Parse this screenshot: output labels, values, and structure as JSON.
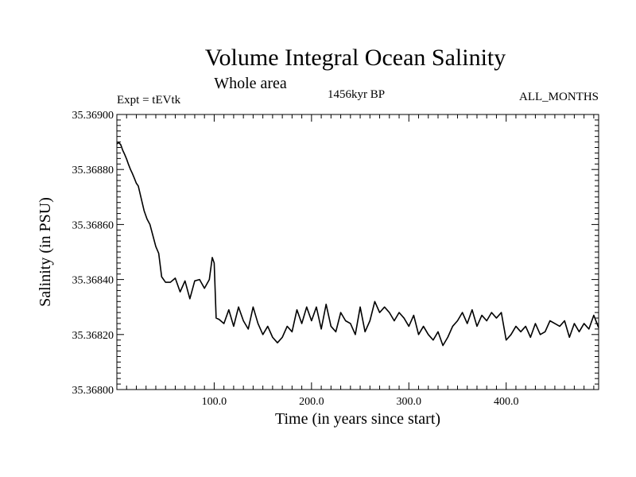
{
  "chart_data": {
    "type": "line",
    "title": "Volume Integral Ocean Salinity",
    "subtitle": "Whole area",
    "experiment_label": "Expt = tEVtk",
    "period_label": "1456kyr BP",
    "months_label": "ALL_MONTHS",
    "xlabel": "Time (in years since start)",
    "ylabel": "Salinity (in PSU)",
    "xlim": [
      0,
      495
    ],
    "ylim": [
      35.368,
      35.369
    ],
    "x_ticks": [
      100,
      200,
      300,
      400
    ],
    "x_tick_labels": [
      "100.0",
      "200.0",
      "300.0",
      "400.0"
    ],
    "y_ticks": [
      35.368,
      35.3682,
      35.3684,
      35.3686,
      35.3688,
      35.369
    ],
    "y_tick_labels": [
      "35.36800",
      "35.36820",
      "35.36840",
      "35.36860",
      "35.36880",
      "35.36900"
    ],
    "grid": false,
    "series": [
      {
        "name": "Salinity",
        "color": "#000000",
        "x": [
          0,
          2,
          4,
          6,
          8,
          10,
          12,
          14,
          16,
          18,
          20,
          22,
          25,
          28,
          31,
          34,
          37,
          40,
          43,
          46,
          50,
          55,
          60,
          65,
          70,
          75,
          80,
          85,
          90,
          95,
          98,
          100,
          102,
          105,
          110,
          115,
          120,
          125,
          130,
          135,
          140,
          145,
          150,
          155,
          160,
          165,
          170,
          175,
          180,
          185,
          190,
          195,
          200,
          205,
          210,
          215,
          220,
          225,
          230,
          235,
          240,
          245,
          250,
          255,
          260,
          265,
          270,
          275,
          280,
          285,
          290,
          295,
          300,
          305,
          310,
          315,
          320,
          325,
          330,
          335,
          340,
          345,
          350,
          355,
          360,
          365,
          370,
          375,
          380,
          385,
          390,
          395,
          400,
          405,
          410,
          415,
          420,
          425,
          430,
          435,
          440,
          445,
          450,
          455,
          460,
          465,
          470,
          475,
          480,
          485,
          490,
          495
        ],
        "y": [
          35.368893,
          35.368898,
          35.36889,
          35.36887,
          35.368855,
          35.368838,
          35.368818,
          35.3688,
          35.368785,
          35.368768,
          35.36875,
          35.36874,
          35.368695,
          35.36865,
          35.36862,
          35.3686,
          35.36856,
          35.36852,
          35.368495,
          35.36841,
          35.36839,
          35.36839,
          35.368405,
          35.368355,
          35.368395,
          35.36833,
          35.368395,
          35.3684,
          35.368368,
          35.3684,
          35.36848,
          35.36846,
          35.36826,
          35.368255,
          35.36824,
          35.36829,
          35.36823,
          35.3683,
          35.36825,
          35.36822,
          35.3683,
          35.36824,
          35.3682,
          35.36823,
          35.36819,
          35.36817,
          35.36819,
          35.36823,
          35.36821,
          35.36829,
          35.36824,
          35.3683,
          35.36825,
          35.3683,
          35.36822,
          35.36831,
          35.36823,
          35.36821,
          35.36828,
          35.36825,
          35.36824,
          35.3682,
          35.3683,
          35.36821,
          35.36825,
          35.36832,
          35.36828,
          35.3683,
          35.36828,
          35.36825,
          35.36828,
          35.36826,
          35.36823,
          35.36827,
          35.3682,
          35.36823,
          35.3682,
          35.36818,
          35.36821,
          35.36816,
          35.36819,
          35.36823,
          35.36825,
          35.36828,
          35.36824,
          35.36829,
          35.36823,
          35.36827,
          35.36825,
          35.36828,
          35.36826,
          35.36828,
          35.36818,
          35.3682,
          35.36823,
          35.36821,
          35.36823,
          35.36819,
          35.36824,
          35.3682,
          35.36821,
          35.36825,
          35.36824,
          35.36823,
          35.36825,
          35.36819,
          35.36824,
          35.36821,
          35.36824,
          35.36822,
          35.36827,
          35.368225
        ]
      }
    ]
  }
}
